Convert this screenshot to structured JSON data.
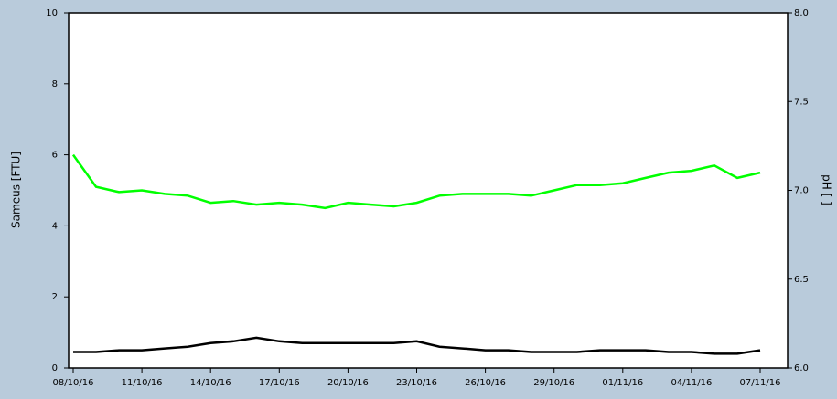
{
  "chart_data": {
    "type": "line",
    "y_label": "Sameus  [FTU]",
    "y2_label": "pH  [ ]",
    "x": [
      "08/10/16",
      "09/10/16",
      "10/10/16",
      "11/10/16",
      "12/10/16",
      "13/10/16",
      "14/10/16",
      "15/10/16",
      "16/10/16",
      "17/10/16",
      "18/10/16",
      "19/10/16",
      "20/10/16",
      "21/10/16",
      "22/10/16",
      "23/10/16",
      "24/10/16",
      "25/10/16",
      "26/10/16",
      "27/10/16",
      "28/10/16",
      "29/10/16",
      "30/10/16",
      "31/10/16",
      "01/11/16",
      "02/11/16",
      "03/11/16",
      "04/11/16",
      "05/11/16",
      "06/11/16",
      "07/11/16"
    ],
    "series": [
      {
        "color": "#000000",
        "axis": "y",
        "values": [
          0.45,
          0.45,
          0.5,
          0.5,
          0.55,
          0.6,
          0.7,
          0.75,
          0.85,
          0.75,
          0.7,
          0.7,
          0.7,
          0.7,
          0.7,
          0.75,
          0.6,
          0.55,
          0.5,
          0.5,
          0.45,
          0.45,
          0.45,
          0.5,
          0.5,
          0.5,
          0.45,
          0.45,
          0.4,
          0.4,
          0.5
        ]
      },
      {
        "color": "#00ff00",
        "axis": "y2",
        "values": [
          7.2,
          7.02,
          6.99,
          7.0,
          6.98,
          6.97,
          6.93,
          6.94,
          6.92,
          6.93,
          6.92,
          6.9,
          6.93,
          6.92,
          6.91,
          6.93,
          6.97,
          6.98,
          6.98,
          6.98,
          6.97,
          7.0,
          7.03,
          7.03,
          7.04,
          7.07,
          7.1,
          7.11,
          7.14,
          7.07,
          7.1
        ]
      }
    ],
    "xlim": [
      "08/10/16",
      "07/11/16"
    ],
    "xticks": [
      "08/10/16",
      "11/10/16",
      "14/10/16",
      "17/10/16",
      "20/10/16",
      "23/10/16",
      "26/10/16",
      "29/10/16",
      "01/11/16",
      "04/11/16",
      "07/11/16"
    ],
    "ylim": [
      0,
      10
    ],
    "yticks": [
      0,
      2,
      4,
      6,
      8,
      10
    ],
    "y2lim": [
      6,
      8
    ],
    "y2ticks": [
      {
        "value": 6,
        "label": "6.0"
      },
      {
        "value": 6.5,
        "label": "6.5"
      },
      {
        "value": 7,
        "label": "7.0"
      },
      {
        "value": 7.5,
        "label": "7.5"
      },
      {
        "value": 8,
        "label": "8.0"
      }
    ]
  }
}
